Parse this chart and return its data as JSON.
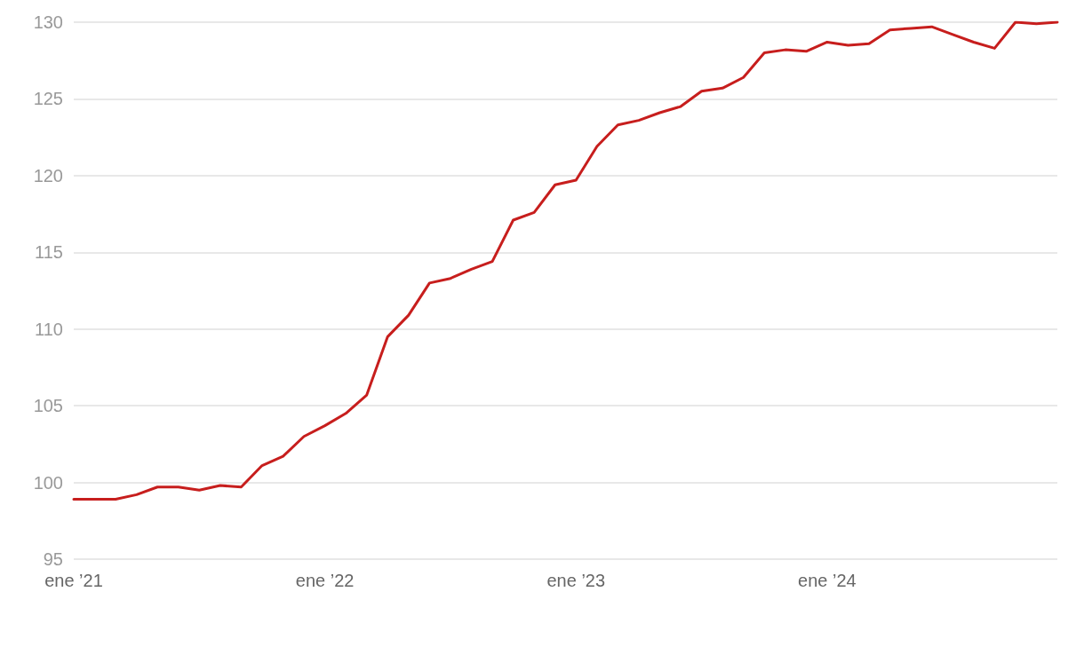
{
  "chart_data": {
    "type": "line",
    "categories": [
      "ene ’21",
      null,
      null,
      null,
      null,
      null,
      null,
      null,
      null,
      null,
      null,
      null,
      "ene ’22",
      null,
      null,
      null,
      null,
      null,
      null,
      null,
      null,
      null,
      null,
      null,
      "ene ’23",
      null,
      null,
      null,
      null,
      null,
      null,
      null,
      null,
      null,
      null,
      null,
      "ene ’24",
      null,
      null,
      null,
      null,
      null,
      null,
      null,
      null,
      null,
      null,
      null
    ],
    "series": [
      {
        "color": "#c71e1d",
        "values": [
          98.9,
          98.9,
          98.9,
          99.2,
          99.7,
          99.7,
          99.5,
          99.8,
          99.7,
          101.1,
          101.7,
          103.0,
          103.7,
          104.5,
          105.7,
          109.5,
          110.9,
          113.0,
          113.3,
          113.9,
          114.4,
          117.1,
          117.6,
          119.4,
          119.7,
          121.9,
          123.3,
          123.6,
          124.1,
          124.5,
          125.5,
          125.7,
          126.4,
          128.0,
          128.2,
          128.1,
          128.7,
          128.5,
          128.6,
          129.5,
          129.6,
          129.7,
          129.2,
          128.7,
          128.3,
          130.0,
          129.9,
          130.0
        ]
      }
    ],
    "ylim": [
      95,
      130
    ],
    "yticks": [
      95,
      100,
      105,
      110,
      115,
      120,
      125,
      130
    ],
    "grid": "y",
    "marker": "none",
    "line_style": "solid"
  }
}
